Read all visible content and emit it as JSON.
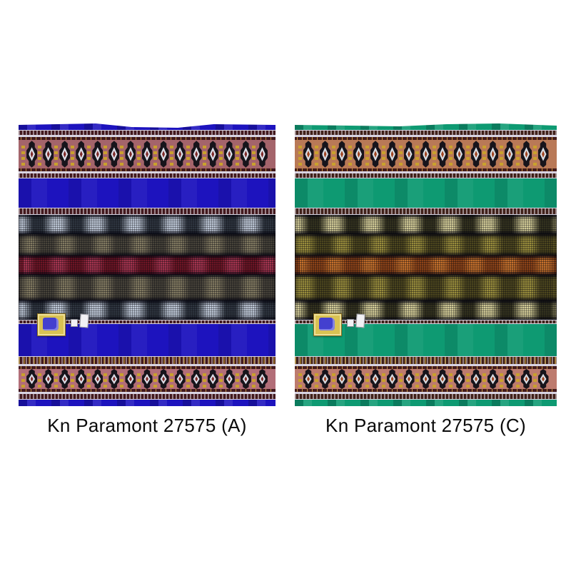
{
  "page": {
    "background": "#ffffff"
  },
  "fabrics": [
    {
      "caption": "Kn Paramont 27575 (A)",
      "palette": {
        "base": "#1d13be",
        "border_band_top_bg": "#a4646b",
        "border_band_bottom_bg": "#b26e78",
        "stripe_dark": "#471a20",
        "edge_line": "#d8d3e2",
        "motif_black": "#17141b",
        "motif_gold": "#c9a12c",
        "motif_white": "#dcdee8",
        "motif_red": "#7e2a28",
        "croc_light_base": "#2f3640",
        "croc_light_highlight": "#bfc9d8",
        "croc_mid_base": "#47433a",
        "croc_mid_highlight": "#837b62",
        "croc_accent_base": "#701525",
        "croc_accent_highlight": "#a83550",
        "label_gold": "#d9c253",
        "label_blue": "#4340cf",
        "tag_white": "#f2f1f4"
      }
    },
    {
      "caption": "Kn Paramont 27575 (C)",
      "palette": {
        "base": "#0e9a72",
        "border_band_top_bg": "#b97957",
        "border_band_bottom_bg": "#bd7b6e",
        "stripe_dark": "#45231c",
        "edge_line": "#d8d3e2",
        "motif_black": "#17141b",
        "motif_gold": "#c9a12c",
        "motif_white": "#d8dce2",
        "motif_red": "#a04420",
        "croc_light_base": "#34331f",
        "croc_light_highlight": "#d4cd98",
        "croc_mid_base": "#4c461e",
        "croc_mid_highlight": "#998d3c",
        "croc_accent_base": "#8f4418",
        "croc_accent_highlight": "#c8722c",
        "label_gold": "#d9c253",
        "label_blue": "#4340cf",
        "tag_white": "#f2f1f4"
      }
    }
  ],
  "motifs_per_band": 15
}
